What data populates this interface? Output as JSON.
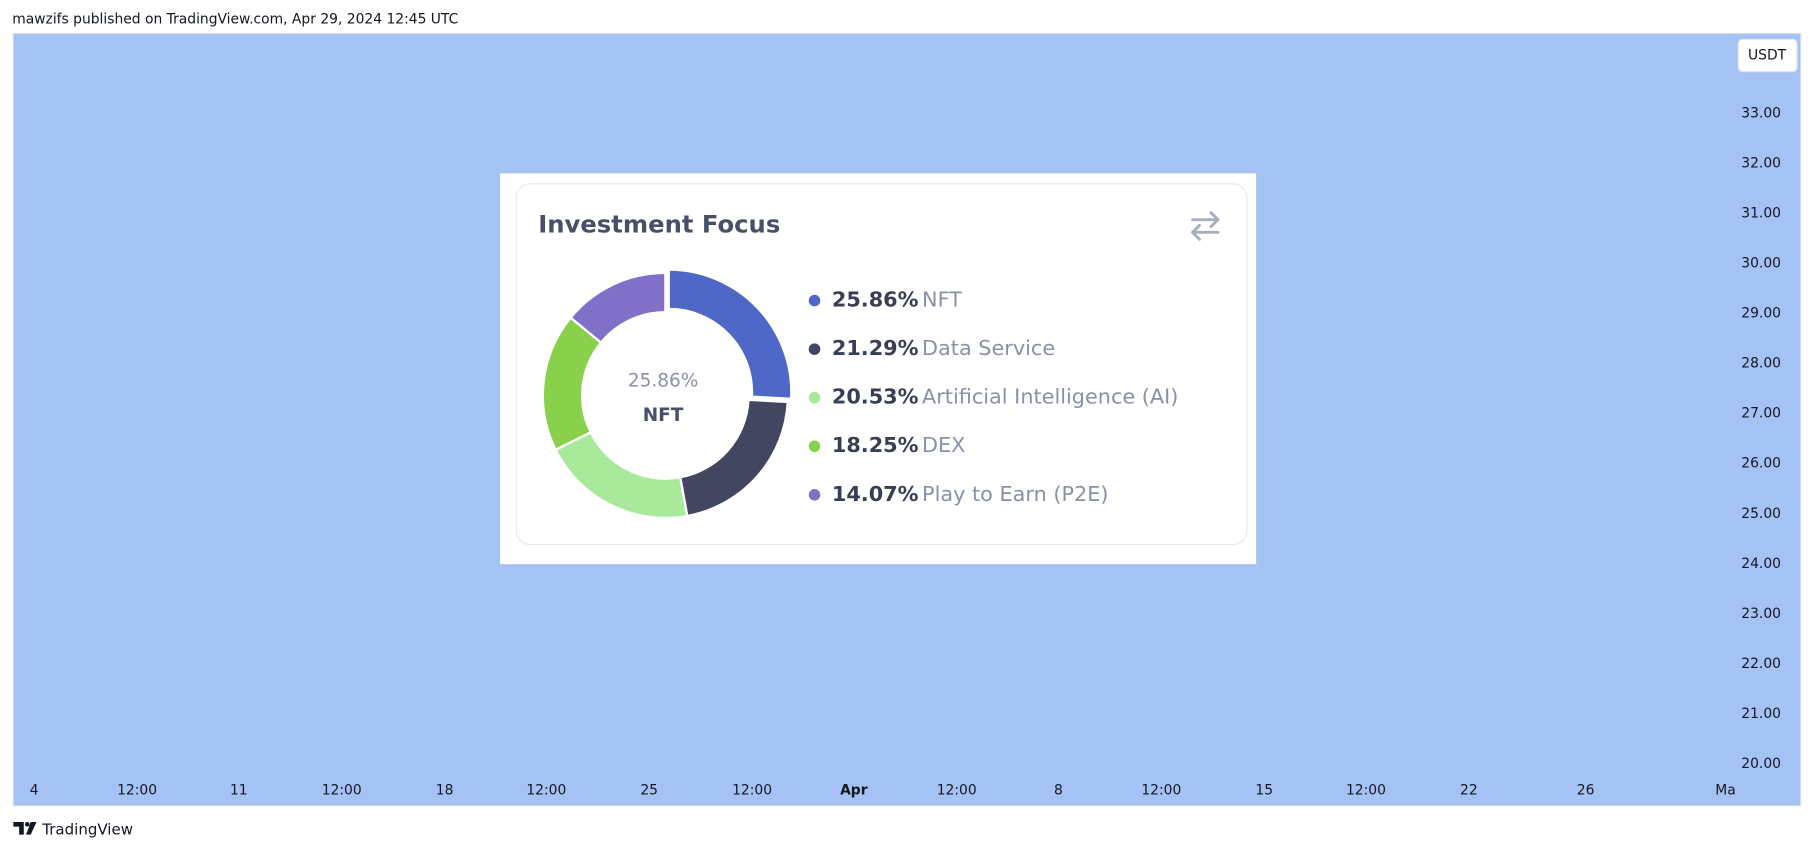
{
  "header": {
    "text": "mawzifs published on TradingView.com, Apr 29, 2024 12:45 UTC"
  },
  "price_axis": {
    "currency": "USDT",
    "ticks": [
      {
        "value": 33,
        "label": "33.00"
      },
      {
        "value": 32,
        "label": "32.00"
      },
      {
        "value": 31,
        "label": "31.00"
      },
      {
        "value": 30,
        "label": "30.00"
      },
      {
        "value": 29,
        "label": "29.00"
      },
      {
        "value": 28,
        "label": "28.00"
      },
      {
        "value": 27,
        "label": "27.00"
      },
      {
        "value": 26,
        "label": "26.00"
      },
      {
        "value": 25,
        "label": "25.00"
      },
      {
        "value": 24,
        "label": "24.00"
      },
      {
        "value": 23,
        "label": "23.00"
      },
      {
        "value": 22,
        "label": "22.00"
      },
      {
        "value": 21,
        "label": "21.00"
      },
      {
        "value": 20,
        "label": "20.00"
      }
    ]
  },
  "time_axis": {
    "labels": [
      "4",
      "12:00",
      "11",
      "12:00",
      "18",
      "12:00",
      "25",
      "12:00",
      "Apr",
      "12:00",
      "8",
      "12:00",
      "15",
      "12:00",
      "22",
      "26",
      "Ma"
    ]
  },
  "chart_data": {
    "type": "pie",
    "title": "Investment Focus",
    "categories": [
      "NFT",
      "Data Service",
      "Artificial Intelligence (AI)",
      "DEX",
      "Play to Earn (P2E)"
    ],
    "values": [
      25.86,
      21.29,
      20.53,
      18.25,
      14.07
    ],
    "value_labels": [
      "25.86%",
      "21.29%",
      "20.53%",
      "18.25%",
      "14.07%"
    ],
    "colors": [
      "#4f68c8",
      "#424661",
      "#a9e99a",
      "#89d14a",
      "#8070c8"
    ]
  },
  "footer": {
    "brand": "TradingView"
  }
}
